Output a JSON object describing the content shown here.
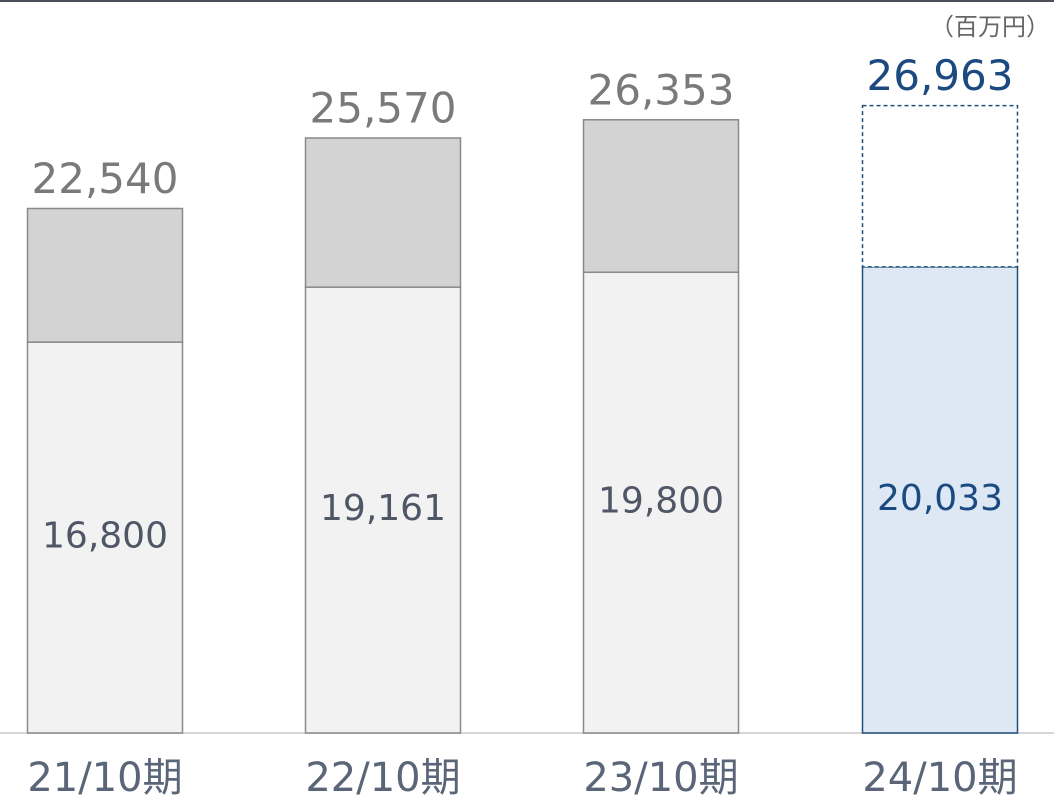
{
  "chart_data": {
    "type": "stacked_bar",
    "unit": "（百万円）",
    "categories": [
      "21/10期",
      "22/10期",
      "23/10期",
      "24/10期"
    ],
    "series": [
      {
        "values": [
          16800,
          19161,
          19800,
          20033
        ],
        "value_labels": [
          "16,800",
          "19,161",
          "19,800",
          "20,033"
        ],
        "color": [
          "#f2f2f2",
          "#f2f2f2",
          "#f2f2f2",
          "#dde8f4"
        ],
        "stroke": [
          "#8a8a8a",
          "#8a8a8a",
          "#8a8a8a",
          "#1f4e79"
        ]
      },
      {
        "values": [
          5740,
          6409,
          6553,
          6930
        ],
        "color": [
          "#d3d3d3",
          "#d3d3d3",
          "#d3d3d3",
          "#ffffff"
        ],
        "stroke": [
          "#8a8a8a",
          "#8a8a8a",
          "#8a8a8a",
          "#1f4e79"
        ]
      }
    ],
    "total_labels": [
      "22,540",
      "25,570",
      "26,353",
      "26,963"
    ],
    "ylim": [
      0,
      31500
    ]
  }
}
